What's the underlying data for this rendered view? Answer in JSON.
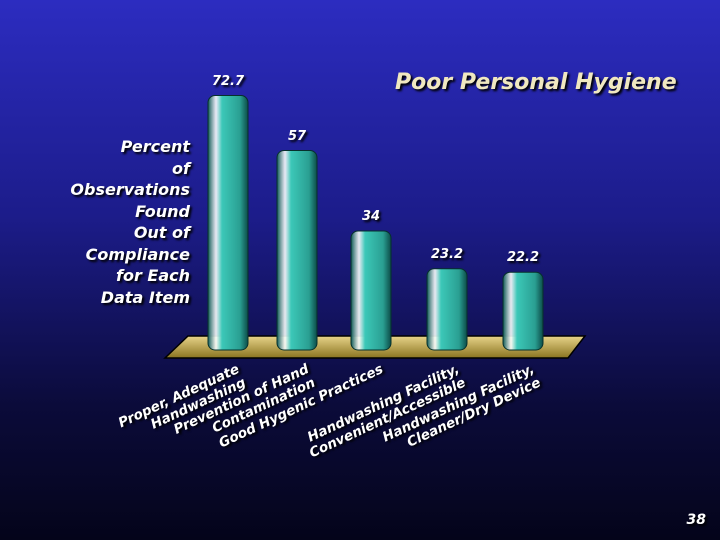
{
  "chart_data": {
    "type": "bar",
    "title": "Poor Personal Hygiene",
    "y_label": "Percent\nof\nObservations\nFound\nOut of\nCompliance\nfor Each\nData Item",
    "categories": [
      "Proper, Adequate\nHandwashing",
      "Prevention of Hand\nContamination",
      "Good Hygenic Practices",
      "Handwashing Facility,\nConvenient/Accessible",
      "Handwashing Facility,\nCleaner/Dry Device"
    ],
    "values": [
      72.7,
      57,
      34,
      23.2,
      22.2
    ],
    "color": "#3cc8b8",
    "ylim": [
      0,
      80
    ],
    "page_number": "38"
  }
}
